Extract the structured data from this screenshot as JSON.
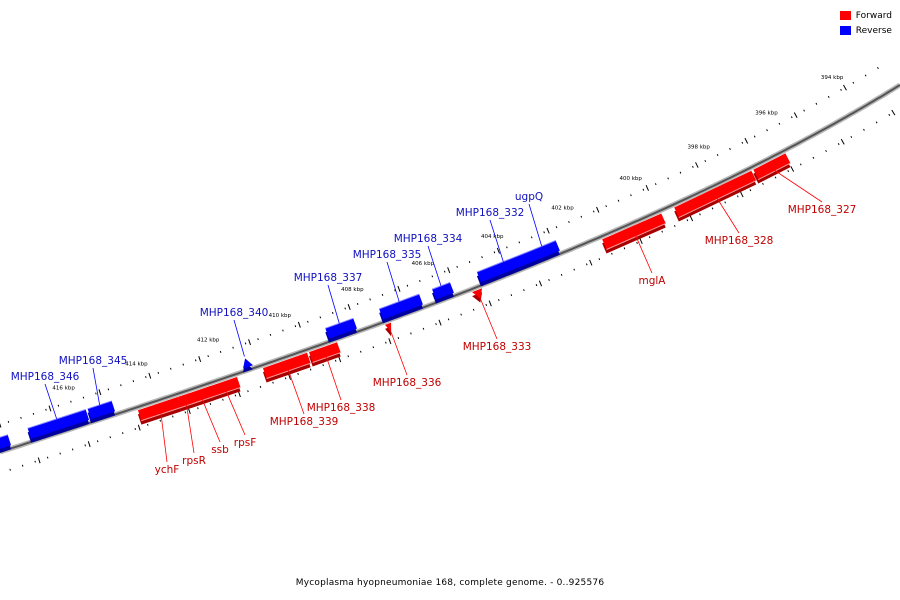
{
  "legend": {
    "forward": {
      "label": "Forward",
      "color": "#ff0000"
    },
    "reverse": {
      "label": "Reverse",
      "color": "#0000ff"
    }
  },
  "caption": "Mycoplasma hyopneumoniae 168, complete genome. - 0..925576",
  "ticks": [
    {
      "kbp": 394,
      "label": "394 kbp"
    },
    {
      "kbp": 396,
      "label": "396 kbp"
    },
    {
      "kbp": 398,
      "label": "398 kbp"
    },
    {
      "kbp": 400,
      "label": "400 kbp"
    },
    {
      "kbp": 402,
      "label": "402 kbp"
    },
    {
      "kbp": 404,
      "label": "404 kbp"
    },
    {
      "kbp": 406,
      "label": "406 kbp"
    },
    {
      "kbp": 408,
      "label": "408 kbp"
    },
    {
      "kbp": 410,
      "label": "410 kbp"
    },
    {
      "kbp": 412,
      "label": "412 kbp"
    },
    {
      "kbp": 414,
      "label": "414 kbp"
    },
    {
      "kbp": 416,
      "label": "416 kbp"
    }
  ],
  "genes": [
    {
      "name": "MHP168_327",
      "strand": "forward"
    },
    {
      "name": "MHP168_328",
      "strand": "forward"
    },
    {
      "name": "mglA",
      "strand": "forward"
    },
    {
      "name": "MHP168_333",
      "strand": "forward"
    },
    {
      "name": "MHP168_336",
      "strand": "forward"
    },
    {
      "name": "MHP168_338",
      "strand": "forward"
    },
    {
      "name": "MHP168_339",
      "strand": "forward"
    },
    {
      "name": "rpsF",
      "strand": "forward"
    },
    {
      "name": "ssb",
      "strand": "forward"
    },
    {
      "name": "rpsR",
      "strand": "forward"
    },
    {
      "name": "ychF",
      "strand": "forward"
    },
    {
      "name": "ugpQ",
      "strand": "reverse"
    },
    {
      "name": "MHP168_332",
      "strand": "reverse"
    },
    {
      "name": "MHP168_334",
      "strand": "reverse"
    },
    {
      "name": "MHP168_335",
      "strand": "reverse"
    },
    {
      "name": "MHP168_337",
      "strand": "reverse"
    },
    {
      "name": "MHP168_340",
      "strand": "reverse"
    },
    {
      "name": "MHP168_345",
      "strand": "reverse"
    },
    {
      "name": "MHP168_346",
      "strand": "reverse"
    }
  ]
}
